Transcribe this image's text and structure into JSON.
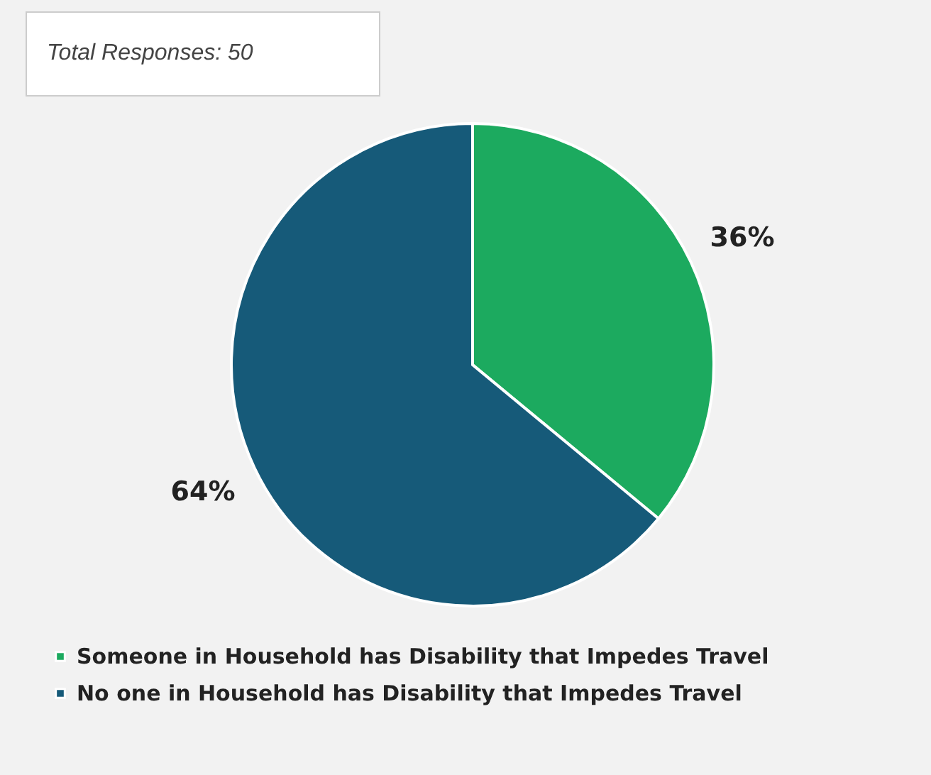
{
  "chart_data": {
    "type": "pie",
    "categories": [
      "Someone in Household has Disability that Impedes Travel",
      "No one in Household has Disability that Impedes Travel"
    ],
    "values": [
      36,
      64
    ],
    "colors": [
      "#1caa5f",
      "#165a79"
    ],
    "value_labels": [
      "36%",
      "64%"
    ],
    "annotations": [
      "Total Responses: 50"
    ],
    "legend": "bottom"
  }
}
